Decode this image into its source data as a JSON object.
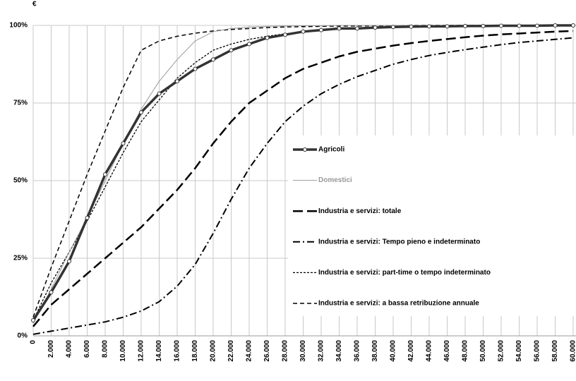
{
  "chart_data": {
    "type": "line",
    "unit_label": "€",
    "x": [
      0,
      2000,
      4000,
      6000,
      8000,
      10000,
      12000,
      14000,
      16000,
      18000,
      20000,
      22000,
      24000,
      26000,
      28000,
      30000,
      32000,
      34000,
      36000,
      38000,
      40000,
      42000,
      44000,
      46000,
      48000,
      50000,
      52000,
      54000,
      56000,
      58000,
      60000
    ],
    "xlim": [
      0,
      60000
    ],
    "xticks": [
      0,
      {
        "value": 2000,
        "label": "2.000"
      },
      {
        "value": 4000,
        "label": "4.000"
      },
      {
        "value": 6000,
        "label": "6.000"
      },
      {
        "value": 8000,
        "label": "8.000"
      },
      {
        "value": 10000,
        "label": "10.000"
      },
      {
        "value": 12000,
        "label": "12.000"
      },
      {
        "value": 14000,
        "label": "14.000"
      },
      {
        "value": 16000,
        "label": "16.000"
      },
      {
        "value": 18000,
        "label": "18.000"
      },
      {
        "value": 20000,
        "label": "20.000"
      },
      {
        "value": 22000,
        "label": "22.000"
      },
      {
        "value": 24000,
        "label": "24.000"
      },
      {
        "value": 26000,
        "label": "26.000"
      },
      {
        "value": 28000,
        "label": "28.000"
      },
      {
        "value": 30000,
        "label": "30.000"
      },
      {
        "value": 32000,
        "label": "32.000"
      },
      {
        "value": 34000,
        "label": "34.000"
      },
      {
        "value": 36000,
        "label": "36.000"
      },
      {
        "value": 38000,
        "label": "38.000"
      },
      {
        "value": 40000,
        "label": "40.000"
      },
      {
        "value": 42000,
        "label": "42.000"
      },
      {
        "value": 44000,
        "label": "44.000"
      },
      {
        "value": 46000,
        "label": "46.000"
      },
      {
        "value": 48000,
        "label": "48.000"
      },
      {
        "value": 50000,
        "label": "50.000"
      },
      {
        "value": 52000,
        "label": "52.000"
      },
      {
        "value": 54000,
        "label": "54.000"
      },
      {
        "value": 56000,
        "label": "56.000"
      },
      {
        "value": 58000,
        "label": "58.000"
      },
      {
        "value": 60000,
        "label": "60.000"
      }
    ],
    "ylim": [
      0,
      100
    ],
    "yticks": [
      {
        "value": 0,
        "label": "0%"
      },
      {
        "value": 25,
        "label": "25%"
      },
      {
        "value": 50,
        "label": "50%"
      },
      {
        "value": 75,
        "label": "75%"
      },
      {
        "value": 100,
        "label": "100%"
      }
    ],
    "grid": true,
    "series": [
      {
        "name": "Agricoli",
        "color": "#333333",
        "style": "solid-thick",
        "markers": true,
        "values": [
          5,
          14,
          24,
          38,
          52,
          62,
          72,
          78,
          82,
          86,
          89,
          92,
          94,
          96,
          97,
          98,
          98.5,
          99,
          99,
          99.3,
          99.5,
          99.6,
          99.7,
          99.7,
          99.8,
          99.8,
          99.9,
          99.9,
          99.9,
          100,
          100
        ]
      },
      {
        "name": "Domestici",
        "color": "#999999",
        "style": "solid-thin",
        "values": [
          4,
          15,
          27,
          38,
          50,
          62,
          73,
          82,
          89,
          95,
          98,
          99,
          99.5,
          99.7,
          99.8,
          99.9,
          99.9,
          100,
          100,
          100,
          100,
          100,
          100,
          100,
          100,
          100,
          100,
          100,
          100,
          100,
          100
        ]
      },
      {
        "name": "Industria e servizi: totale",
        "color": "#000000",
        "style": "long-dash",
        "values": [
          3,
          10,
          15,
          20,
          25,
          30,
          35,
          41,
          47,
          54,
          62,
          69,
          75,
          79,
          83,
          86,
          88,
          90,
          91.5,
          92.5,
          93.5,
          94.3,
          95,
          95.6,
          96.2,
          96.7,
          97.1,
          97.4,
          97.7,
          98,
          98.2
        ]
      },
      {
        "name": "Industria e servizi: Tempo pieno e indeterminato",
        "color": "#000000",
        "style": "dash-dot",
        "values": [
          0.5,
          1.5,
          2.5,
          3.5,
          4.5,
          6,
          8,
          11,
          16,
          23,
          33,
          44,
          54,
          62,
          69,
          74,
          78,
          81,
          83.5,
          85.5,
          87.5,
          89,
          90.3,
          91.3,
          92.2,
          93,
          93.8,
          94.5,
          95,
          95.5,
          96
        ]
      },
      {
        "name": "Industria e servizi: part-time o tempo indeterminato",
        "color": "#000000",
        "style": "short-dash",
        "values": [
          5,
          17,
          27,
          37,
          48,
          59,
          69,
          76,
          83,
          88,
          92,
          94,
          95.5,
          96.5,
          97.3,
          97.9,
          98.4,
          98.8,
          99,
          99.2,
          99.4,
          99.5,
          99.6,
          99.7,
          99.7,
          99.8,
          99.8,
          99.9,
          99.9,
          100,
          100
        ]
      },
      {
        "name": "Industria e servizi: a bassa retribuzione annuale",
        "color": "#000000",
        "style": "dash",
        "values": [
          6,
          22,
          37,
          52,
          66,
          80,
          92,
          95,
          96.5,
          97.5,
          98.2,
          98.7,
          99,
          99.3,
          99.5,
          99.6,
          99.7,
          99.8,
          99.8,
          99.9,
          99.9,
          100,
          100,
          100,
          100,
          100,
          100,
          100,
          100,
          100,
          100
        ]
      }
    ]
  }
}
